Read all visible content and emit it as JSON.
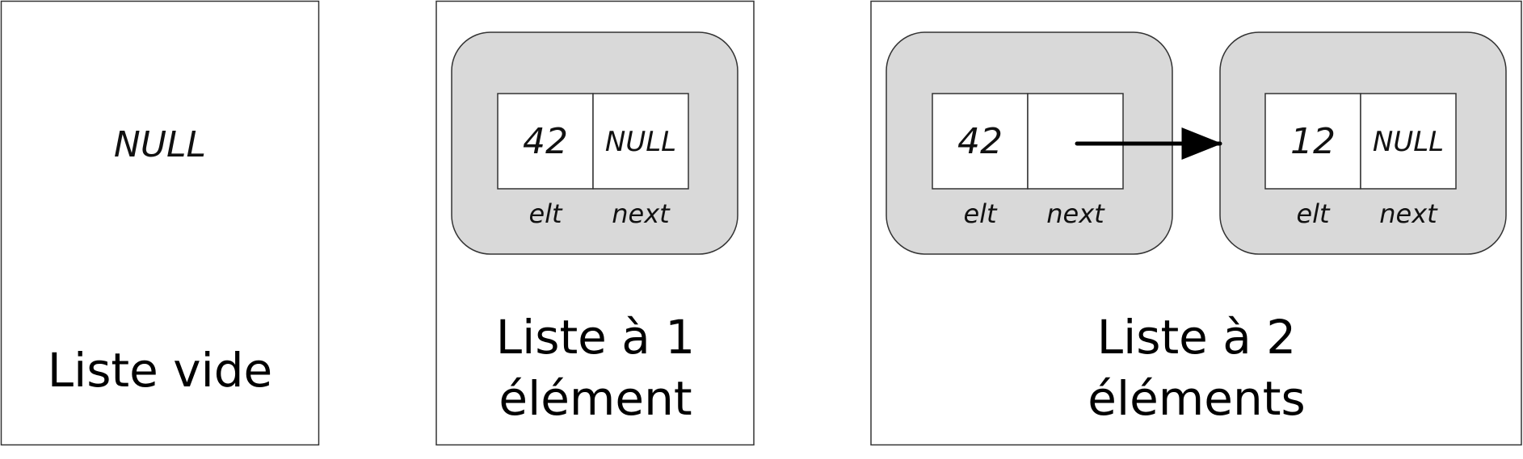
{
  "panels": {
    "empty": {
      "null_label": "NULL",
      "caption": "Liste vide"
    },
    "one": {
      "caption_line1": "Liste à 1",
      "caption_line2": "élément",
      "node": {
        "elt_value": "42",
        "next_value": "NULL",
        "elt_label": "elt",
        "next_label": "next"
      }
    },
    "two": {
      "caption_line1": "Liste à 2",
      "caption_line2": "éléments",
      "node1": {
        "elt_value": "42",
        "elt_label": "elt",
        "next_label": "next"
      },
      "node2": {
        "elt_value": "12",
        "next_value": "NULL",
        "elt_label": "elt",
        "next_label": "next"
      }
    }
  },
  "colors": {
    "node_fill": "#d9d9d9",
    "stroke": "#333333",
    "arrow": "#000000"
  }
}
